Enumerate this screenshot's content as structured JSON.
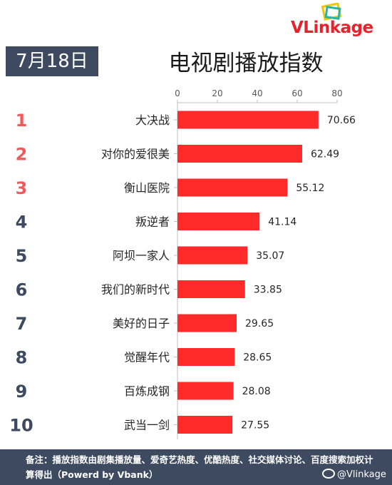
{
  "brand": {
    "logo_text_v": "VL",
    "logo_text_rest": "inkage"
  },
  "header": {
    "date": "7月18日",
    "title": "电视剧播放指数"
  },
  "colors": {
    "bar": "#ff2a2a",
    "rank_top": "#ef5a5a",
    "rank_rest": "#3d4a5f",
    "banner": "#3d4a5f"
  },
  "chart_data": {
    "type": "bar",
    "orientation": "horizontal",
    "categories": [
      "大决战",
      "对你的爱很美",
      "衡山医院",
      "叛逆者",
      "阿坝一家人",
      "我们的新时代",
      "美好的日子",
      "觉醒年代",
      "百炼成钢",
      "武当一剑"
    ],
    "ranks": [
      "1",
      "2",
      "3",
      "4",
      "5",
      "6",
      "7",
      "8",
      "9",
      "10"
    ],
    "values": [
      70.66,
      62.49,
      55.12,
      41.14,
      35.07,
      33.85,
      29.65,
      28.65,
      28.08,
      27.55
    ],
    "value_labels": [
      "70.66",
      "62.49",
      "55.12",
      "41.14",
      "35.07",
      "33.85",
      "29.65",
      "28.65",
      "28.08",
      "27.55"
    ],
    "xlim": [
      0,
      80
    ],
    "ticks": [
      "0",
      "20",
      "40",
      "60",
      "80"
    ],
    "grid": false,
    "axis_position": "top"
  },
  "footer": {
    "note": "备注：播放指数由剧集播放量、爱奇艺热度、优酷热度、社交媒体讨论、百度搜索加权计算得出（Powerd by Vbank）",
    "weibo_handle": "@Vlinkage"
  }
}
